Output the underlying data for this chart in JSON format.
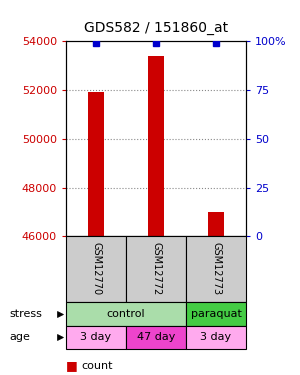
{
  "title": "GDS582 / 151860_at",
  "samples": [
    "GSM12770",
    "GSM12772",
    "GSM12773"
  ],
  "counts": [
    51900,
    53400,
    47000
  ],
  "percentile_ranks": [
    99,
    99,
    99
  ],
  "ylim": [
    46000,
    54000
  ],
  "yticks_left": [
    46000,
    48000,
    50000,
    52000,
    54000
  ],
  "yticks_right": [
    0,
    25,
    50,
    75,
    100
  ],
  "bar_color": "#cc0000",
  "dot_color": "#0000cc",
  "bar_bottom": 46000,
  "age_labels": [
    "3 day",
    "47 day",
    "3 day"
  ],
  "age_colors": [
    "#ffaaee",
    "#ee44cc",
    "#ffaaee"
  ],
  "sample_box_color": "#cccccc",
  "grid_color": "#888888",
  "left_label_color": "#cc0000",
  "right_label_color": "#0000cc",
  "control_color": "#aaddaa",
  "paraquat_color": "#44cc44"
}
